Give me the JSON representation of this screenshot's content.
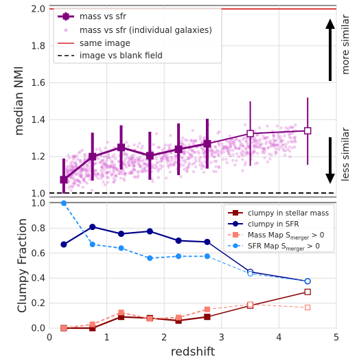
{
  "chart_data": [
    {
      "type": "line",
      "panel": "top",
      "ylabel": "median NMI",
      "xlim": [
        0,
        5
      ],
      "ylim": [
        1.0,
        2.0
      ],
      "yticks": [
        "1.0",
        "1.2",
        "1.4",
        "1.6",
        "1.8",
        "2.0"
      ],
      "grid": true,
      "legend_position": "top-left",
      "side_annotations": [
        "more similar",
        "less similar"
      ],
      "series": [
        {
          "name": "mass vs sfr",
          "color": "#800080",
          "x": [
            0.25,
            0.75,
            1.25,
            1.75,
            2.25,
            2.75,
            3.5,
            4.5
          ],
          "y": [
            1.075,
            1.2,
            1.25,
            1.205,
            1.24,
            1.27,
            1.325,
            1.34
          ],
          "yerr_low": [
            1.0,
            1.07,
            1.13,
            1.075,
            1.1,
            1.135,
            1.15,
            1.155
          ],
          "yerr_high": [
            1.19,
            1.33,
            1.37,
            1.335,
            1.38,
            1.405,
            1.5,
            1.52
          ]
        },
        {
          "name": "mass vs sfr (individual galaxies)",
          "color": "#DA70D6"
        },
        {
          "name": "same image",
          "color": "#D62728",
          "y": 2.0
        },
        {
          "name": "image vs blank field",
          "color": "#000000",
          "y": 1.003
        }
      ]
    },
    {
      "type": "line",
      "panel": "bottom",
      "xlabel": "redshift",
      "ylabel": "Clumpy Fraction",
      "xlim": [
        0,
        5
      ],
      "ylim": [
        0,
        1.0
      ],
      "xticks": [
        "0",
        "1",
        "2",
        "3",
        "4",
        "5"
      ],
      "yticks": [
        "0.0",
        "0.2",
        "0.4",
        "0.6",
        "0.8",
        "1.0"
      ],
      "grid": true,
      "legend_position": "top-right",
      "series": [
        {
          "name": "clumpy in stellar mass",
          "color": "#8B0000",
          "x": [
            0.25,
            0.75,
            1.25,
            1.75,
            2.25,
            2.75,
            3.5,
            4.5
          ],
          "y": [
            0.0,
            0.0,
            0.09,
            0.08,
            0.06,
            0.09,
            0.18,
            0.29
          ]
        },
        {
          "name": "clumpy in SFR",
          "color": "#00008B",
          "x": [
            0.25,
            0.75,
            1.25,
            1.75,
            2.25,
            2.75,
            3.5,
            4.5
          ],
          "y": [
            0.67,
            0.81,
            0.755,
            0.775,
            0.7,
            0.69,
            0.45,
            0.375
          ]
        },
        {
          "name_main": "Mass Map S",
          "name_sub": "merger",
          "name_tail": " > 0",
          "color": "#FA8072",
          "x": [
            0.25,
            0.75,
            1.25,
            1.75,
            2.25,
            2.75,
            3.5,
            4.5
          ],
          "y": [
            0.0,
            0.03,
            0.125,
            0.075,
            0.085,
            0.15,
            0.19,
            0.165
          ]
        },
        {
          "name_main": "SFR Map S",
          "name_sub": "merger",
          "name_tail": " > 0",
          "color": "#1E90FF",
          "x": [
            0.25,
            0.75,
            1.25,
            1.75,
            2.25,
            2.75,
            3.5,
            4.5
          ],
          "y": [
            1.0,
            0.67,
            0.64,
            0.56,
            0.575,
            0.575,
            0.435,
            0.375
          ]
        }
      ]
    }
  ]
}
